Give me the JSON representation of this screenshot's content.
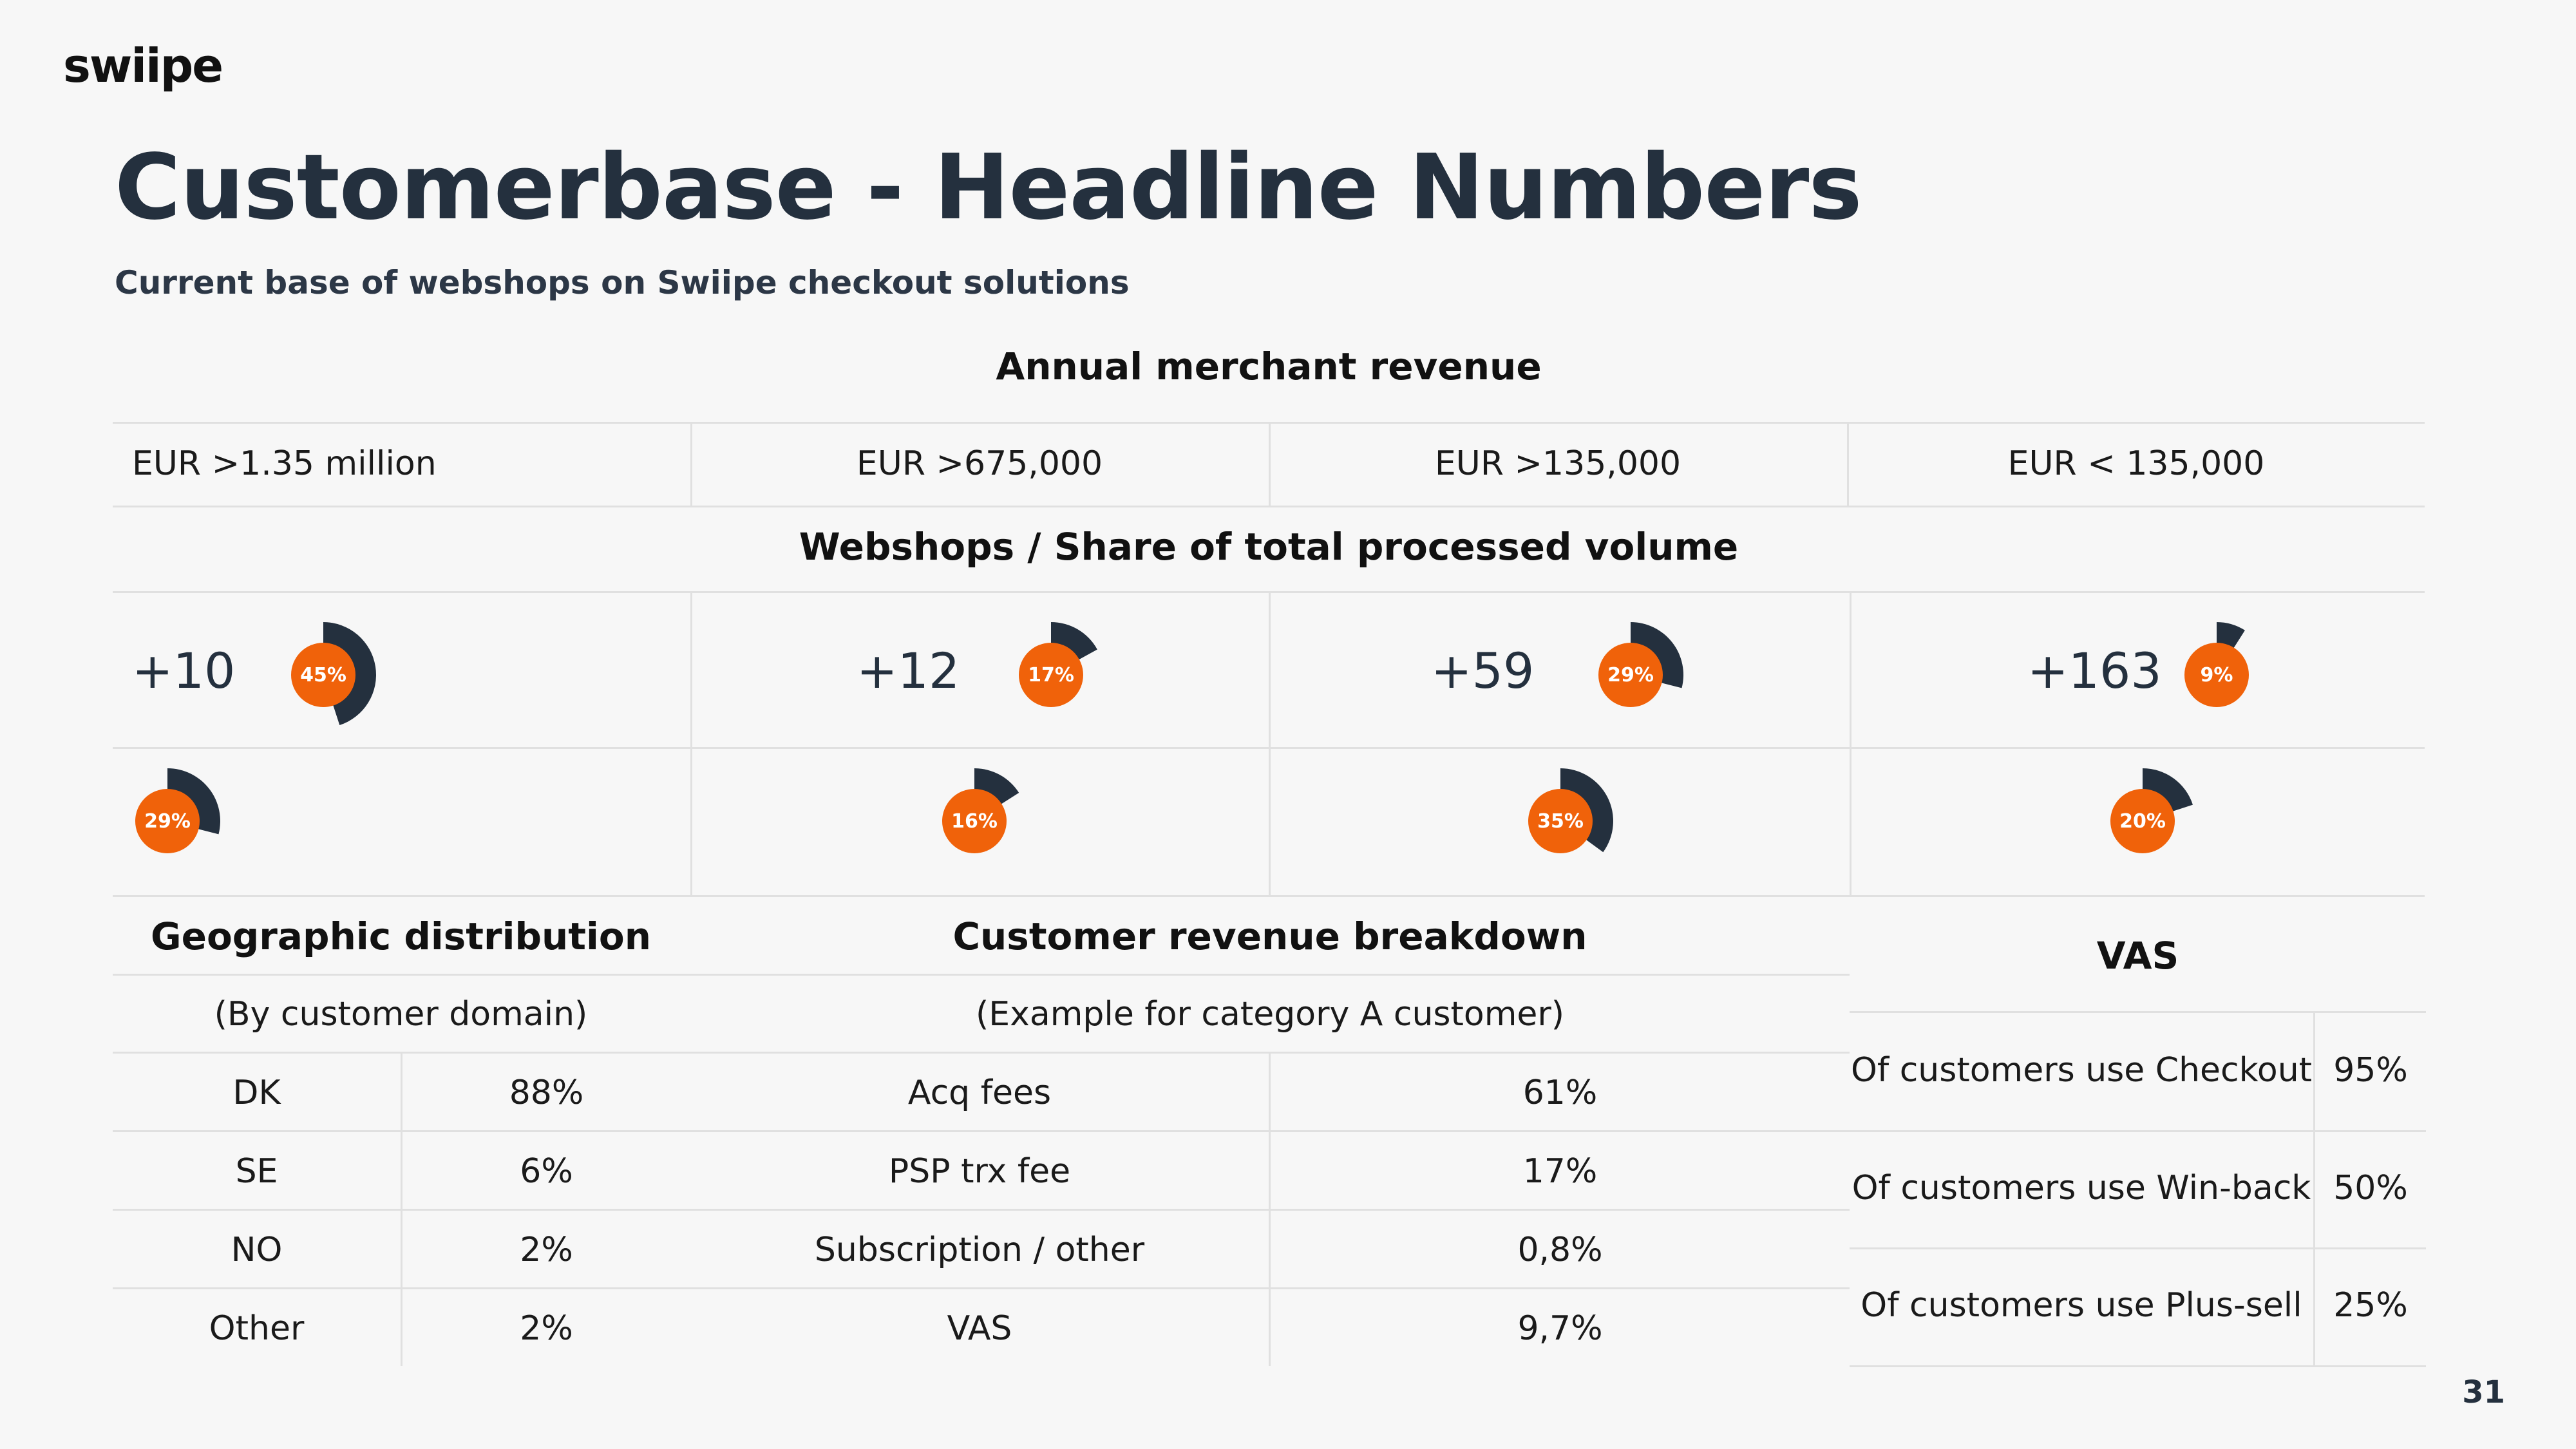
{
  "brand": {
    "logo": "swiipe"
  },
  "slide": {
    "title": "Customerbase - Headline Numbers",
    "subtitle": "Current base of webshops on Swiipe checkout solutions",
    "page_number": "31"
  },
  "revenue": {
    "header": "Annual merchant revenue",
    "tiers": [
      "EUR >1.35 million",
      "EUR >675,000",
      "EUR >135,000",
      "EUR < 135,000"
    ]
  },
  "webshops": {
    "header": "Webshops / Share of total processed volume",
    "counts": [
      "+10",
      "+12",
      "+59",
      "+163"
    ],
    "share_top": [
      45,
      17,
      29,
      9
    ],
    "share_top_labels": [
      "45%",
      "17%",
      "29%",
      "9%"
    ],
    "share_bottom": [
      29,
      16,
      35,
      20
    ],
    "share_bottom_labels": [
      "29%",
      "16%",
      "35%",
      "20%"
    ]
  },
  "geo": {
    "header": "Geographic distribution",
    "note": "(By customer domain)",
    "rows": [
      {
        "country": "DK",
        "pct": "88%"
      },
      {
        "country": "SE",
        "pct": "6%"
      },
      {
        "country": "NO",
        "pct": "2%"
      },
      {
        "country": "Other",
        "pct": "2%"
      }
    ]
  },
  "breakdown": {
    "header": "Customer revenue breakdown",
    "note": "(Example for category A customer)",
    "rows": [
      {
        "item": "Acq fees",
        "pct": "61%"
      },
      {
        "item": "PSP trx fee",
        "pct": "17%"
      },
      {
        "item": "Subscription / other",
        "pct": "0,8%"
      },
      {
        "item": "VAS",
        "pct": "9,7%"
      }
    ]
  },
  "vas": {
    "header": "VAS",
    "rows": [
      {
        "label": "Of customers use Checkout",
        "pct": "95%"
      },
      {
        "label": "Of customers use Win-back",
        "pct": "50%"
      },
      {
        "label": "Of customers use Plus-sell",
        "pct": "25%"
      }
    ]
  },
  "colors": {
    "orange": "#f0620a",
    "navy": "#24303e",
    "text": "#1a1a1a",
    "grid": "#e0e0e0"
  }
}
